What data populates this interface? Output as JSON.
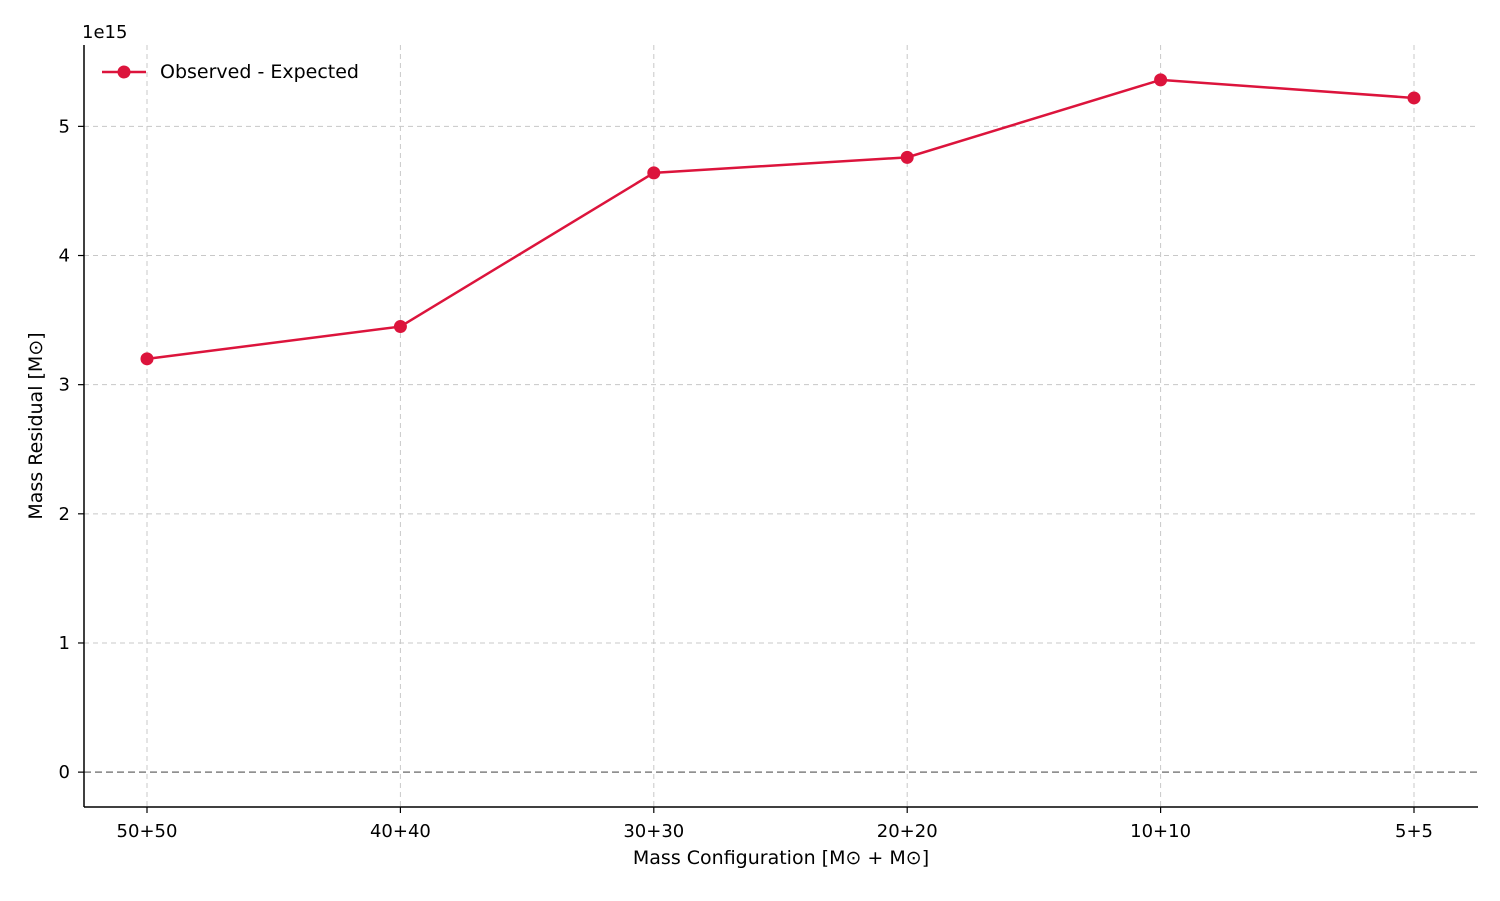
{
  "chart_data": {
    "type": "line",
    "categories": [
      "50+50",
      "40+40",
      "30+30",
      "20+20",
      "10+10",
      "5+5"
    ],
    "series": [
      {
        "name": "Observed - Expected",
        "values": [
          3200000000000000.0,
          3450000000000000.0,
          4640000000000000.0,
          4760000000000000.0,
          5360000000000000.0,
          5220000000000000.0
        ],
        "color": "#dc143c",
        "marker": "circle"
      }
    ],
    "xlabel": "Mass Configuration [M⊙ + M⊙]",
    "ylabel": "Mass Residual [M⊙]",
    "offset_label": "1e15",
    "yticks": [
      "0",
      "1",
      "2",
      "3",
      "4",
      "5"
    ],
    "ytick_values": [
      0,
      1000000000000000.0,
      2000000000000000.0,
      3000000000000000.0,
      4000000000000000.0,
      5000000000000000.0
    ],
    "ylim": [
      -270000000000000.0,
      5630000000000000.0
    ],
    "grid": true,
    "reference_line": 0,
    "legend_position": "top-left"
  }
}
